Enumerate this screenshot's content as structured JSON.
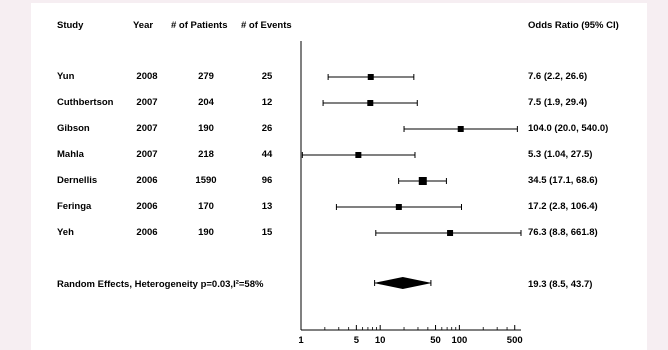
{
  "headers": {
    "study": "Study",
    "year": "Year",
    "patients": "# of Patients",
    "events": "# of Events",
    "or": "Odds Ratio (95% CI)"
  },
  "chart_data": {
    "type": "forest",
    "x_scale": "log",
    "xlim": [
      1,
      600
    ],
    "x_ticks": [
      1,
      5,
      10,
      50,
      100,
      500
    ],
    "x_tick_labels": [
      "1",
      "5",
      "10",
      "50",
      "100",
      "500"
    ],
    "studies": [
      {
        "study": "Yun",
        "year": "2008",
        "patients": "279",
        "events": "25",
        "or": 7.6,
        "lo": 2.2,
        "hi": 26.6,
        "label": "7.6 (2.2, 26.6)"
      },
      {
        "study": "Cuthbertson",
        "year": "2007",
        "patients": "204",
        "events": "12",
        "or": 7.5,
        "lo": 1.9,
        "hi": 29.4,
        "label": "7.5 (1.9, 29.4)"
      },
      {
        "study": "Gibson",
        "year": "2007",
        "patients": "190",
        "events": "26",
        "or": 104.0,
        "lo": 20.0,
        "hi": 540.0,
        "label": "104.0 (20.0, 540.0)"
      },
      {
        "study": "Mahla",
        "year": "2007",
        "patients": "218",
        "events": "44",
        "or": 5.3,
        "lo": 1.04,
        "hi": 27.5,
        "label": "5.3 (1.04, 27.5)"
      },
      {
        "study": "Dernellis",
        "year": "2006",
        "patients": "1590",
        "events": "96",
        "or": 34.5,
        "lo": 17.1,
        "hi": 68.6,
        "label": "34.5 (17.1, 68.6)"
      },
      {
        "study": "Feringa",
        "year": "2006",
        "patients": "170",
        "events": "13",
        "or": 17.2,
        "lo": 2.8,
        "hi": 106.4,
        "label": "17.2 (2.8, 106.4)"
      },
      {
        "study": "Yeh",
        "year": "2006",
        "patients": "190",
        "events": "15",
        "or": 76.3,
        "lo": 8.8,
        "hi": 661.8,
        "label": "76.3 (8.8, 661.8)"
      }
    ],
    "summary": {
      "label": "Random Effects, Heterogeneity p=0.03,I²=58%",
      "or": 19.3,
      "lo": 8.5,
      "hi": 43.7,
      "or_label": "19.3 (8.5, 43.7)"
    }
  }
}
